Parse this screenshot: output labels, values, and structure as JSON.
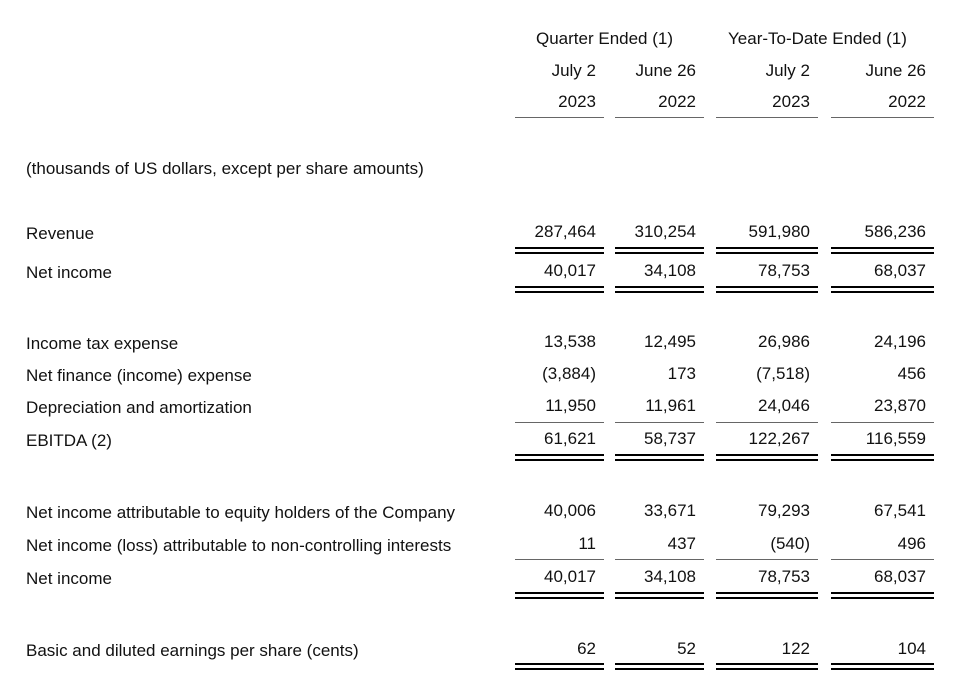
{
  "header": {
    "groups": [
      "Quarter Ended (1)",
      "Year-To-Date Ended (1)"
    ],
    "dates": [
      "July 2",
      "June 26",
      "July 2",
      "June 26"
    ],
    "years": [
      "2023",
      "2022",
      "2023",
      "2022"
    ]
  },
  "units_note": "(thousands of US dollars, except per share amounts)",
  "rows": [
    {
      "label": "Revenue",
      "values": [
        "287,464",
        "310,254",
        "591,980",
        "586,236"
      ]
    },
    {
      "label": "Net income",
      "values": [
        "40,017",
        "34,108",
        "78,753",
        "68,037"
      ]
    },
    {
      "label": "Income tax expense",
      "values": [
        "13,538",
        "12,495",
        "26,986",
        "24,196"
      ]
    },
    {
      "label": "Net finance (income) expense",
      "values": [
        "(3,884)",
        "173",
        "(7,518)",
        "456"
      ]
    },
    {
      "label": "Depreciation and amortization",
      "values": [
        "11,950",
        "11,961",
        "24,046",
        "23,870"
      ]
    },
    {
      "label": "EBITDA (2)",
      "values": [
        "61,621",
        "58,737",
        "122,267",
        "116,559"
      ]
    },
    {
      "label": "Net income attributable to equity holders of the Company",
      "values": [
        "40,006",
        "33,671",
        "79,293",
        "67,541"
      ]
    },
    {
      "label": "Net income (loss) attributable to non-controlling interests",
      "values": [
        "11",
        "437",
        "(540)",
        "496"
      ]
    },
    {
      "label": "Net income",
      "values": [
        "40,017",
        "34,108",
        "78,753",
        "68,037"
      ]
    },
    {
      "label": "Basic and diluted earnings per share (cents)",
      "values": [
        "62",
        "52",
        "122",
        "104"
      ]
    }
  ]
}
